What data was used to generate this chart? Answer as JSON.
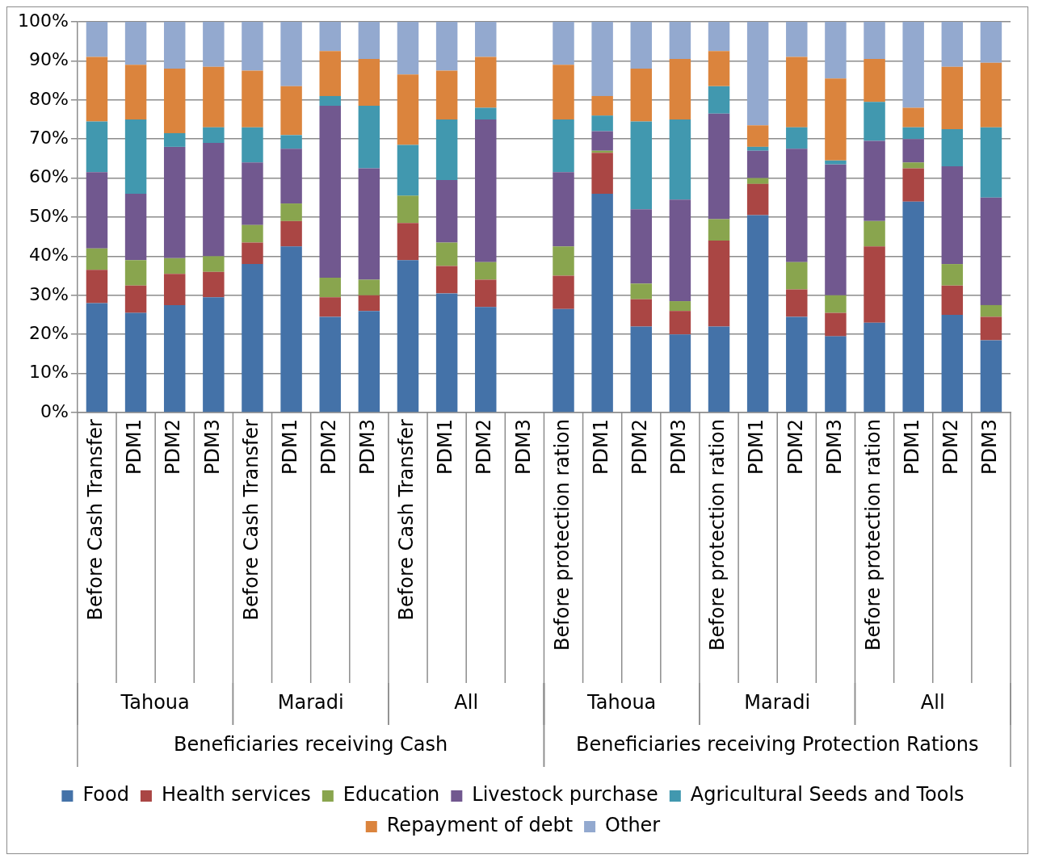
{
  "chart_data": {
    "type": "bar",
    "stacked": true,
    "grid": "y",
    "legend": "bottom",
    "categories": [
      "Before Cash Transfer",
      "PDM1",
      "PDM2",
      "PDM3",
      "Before Cash Transfer",
      "PDM1",
      "PDM2",
      "PDM3",
      "Before Cash Transfer",
      "PDM1",
      "PDM2",
      "PDM3",
      "Before protection ration",
      "PDM1",
      "PDM2",
      "PDM3",
      "Before protection ration",
      "PDM1",
      "PDM2",
      "PDM3",
      "Before protection ration",
      "PDM1",
      "PDM2",
      "PDM3"
    ],
    "ylim": [
      0,
      100
    ],
    "yticks": [
      {
        "value": 0,
        "label": "0%"
      },
      {
        "value": 10,
        "label": "10%"
      },
      {
        "value": 20,
        "label": "20%"
      },
      {
        "value": 30,
        "label": "30%"
      },
      {
        "value": 40,
        "label": "40%"
      },
      {
        "value": 50,
        "label": "50%"
      },
      {
        "value": 60,
        "label": "60%"
      },
      {
        "value": 70,
        "label": "70%"
      },
      {
        "value": 80,
        "label": "80%"
      },
      {
        "value": 90,
        "label": "90%"
      },
      {
        "value": 100,
        "label": "100%"
      }
    ],
    "annotations": [
      "Tahoua",
      "Maradi",
      "All",
      "Tahoua",
      "Maradi",
      "All",
      "Beneficiaries receiving Cash",
      "Beneficiaries receiving Protection Rations"
    ],
    "series": [
      {
        "name": "Food",
        "color": "#4472a8",
        "values": [
          28,
          25.5,
          27.5,
          29.5,
          38,
          42.5,
          24.5,
          26,
          39,
          30.5,
          27,
          null,
          26.5,
          56,
          22,
          20,
          22,
          50.5,
          24.5,
          19.5,
          23,
          54,
          25,
          18.5
        ]
      },
      {
        "name": "Health services",
        "color": "#aa4644",
        "values": [
          8.5,
          7,
          8,
          6.5,
          5.5,
          6.5,
          5,
          4,
          9.5,
          7,
          7,
          null,
          8.5,
          10.5,
          7,
          6,
          22,
          8,
          7,
          6,
          19.5,
          8.5,
          7.5,
          6
        ]
      },
      {
        "name": "Education",
        "color": "#89a54e",
        "values": [
          5.5,
          6.5,
          4,
          4,
          4.5,
          4.5,
          5,
          4,
          7,
          6,
          4.5,
          null,
          7.5,
          0.5,
          4,
          2.5,
          5.5,
          1.5,
          7,
          4.5,
          6.5,
          1.5,
          5.5,
          3
        ]
      },
      {
        "name": "Livestock purchase",
        "color": "#71588f",
        "values": [
          19.5,
          17,
          28.5,
          29,
          16,
          14,
          44,
          28.5,
          0,
          16,
          36.5,
          null,
          19,
          5,
          19,
          26,
          27,
          7,
          29,
          33.5,
          20.5,
          6,
          25,
          27.5
        ]
      },
      {
        "name": "Agricultural Seeds and Tools",
        "color": "#4198af",
        "values": [
          13,
          19,
          3.5,
          4,
          9,
          3.5,
          2.5,
          16,
          13,
          15.5,
          3,
          null,
          13.5,
          4,
          22.5,
          20.5,
          7,
          1,
          5.5,
          1,
          10,
          3,
          9.5,
          18
        ]
      },
      {
        "name": "Repayment of debt",
        "color": "#db843d",
        "values": [
          16.5,
          14,
          16.5,
          15.5,
          14.5,
          12.5,
          11.5,
          12,
          18,
          12.5,
          13,
          null,
          14,
          5,
          13.5,
          15.5,
          9,
          5.5,
          18,
          21,
          11,
          5,
          16,
          16.5
        ]
      },
      {
        "name": "Other",
        "color": "#93a9cf",
        "values": [
          9,
          11,
          12,
          11.5,
          12.5,
          16.5,
          7.5,
          9.5,
          13.5,
          12.5,
          9,
          null,
          11,
          19,
          12,
          9.5,
          7.5,
          26.5,
          9,
          14.5,
          9.5,
          22,
          11.5,
          10.5
        ]
      }
    ]
  }
}
